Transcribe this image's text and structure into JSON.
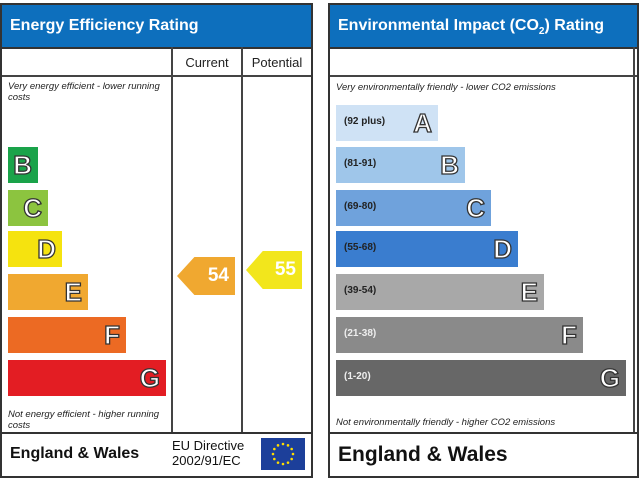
{
  "energy": {
    "title": "Energy Efficiency Rating",
    "col_current": "Current",
    "col_potential": "Potential",
    "top_note": "Very energy efficient - lower running costs",
    "bottom_note": "Not energy efficient - higher running costs",
    "footer": "England & Wales",
    "directive_line1": "EU Directive",
    "directive_line2": "2002/91/EC",
    "current": {
      "value": "54",
      "color": "#f0a830",
      "band": "E"
    },
    "potential": {
      "value": "55",
      "color": "#f2e61c",
      "band": "D"
    }
  },
  "environment": {
    "title": "Environmental Impact (CO",
    "title_sub": "2",
    "title_end": ") Rating",
    "top_note": "Very environmentally friendly - lower CO2 emissions",
    "bottom_note": "Not environmentally friendly - higher CO2 emissions",
    "footer": "England & Wales"
  },
  "chart_data": {
    "type": "bar",
    "charts": [
      {
        "title": "Energy Efficiency Rating",
        "categories": [
          "B",
          "C",
          "D",
          "E",
          "F",
          "G"
        ],
        "colors": [
          "#1aa34a",
          "#8cc43f",
          "#f5e30f",
          "#f0a830",
          "#ec6a23",
          "#e31d23"
        ],
        "current": 54,
        "potential": 55
      },
      {
        "title": "Environmental Impact (CO2) Rating",
        "categories": [
          "A",
          "B",
          "C",
          "D",
          "E",
          "F",
          "G"
        ],
        "ranges": [
          "(92 plus)",
          "(81-91)",
          "(69-80)",
          "(55-68)",
          "(39-54)",
          "(21-38)",
          "(1-20)"
        ],
        "colors": [
          "#cfe2f5",
          "#9fc6ea",
          "#6fa2dc",
          "#3a7dcf",
          "#a8a8a8",
          "#8a8a8a",
          "#676767"
        ]
      }
    ]
  }
}
